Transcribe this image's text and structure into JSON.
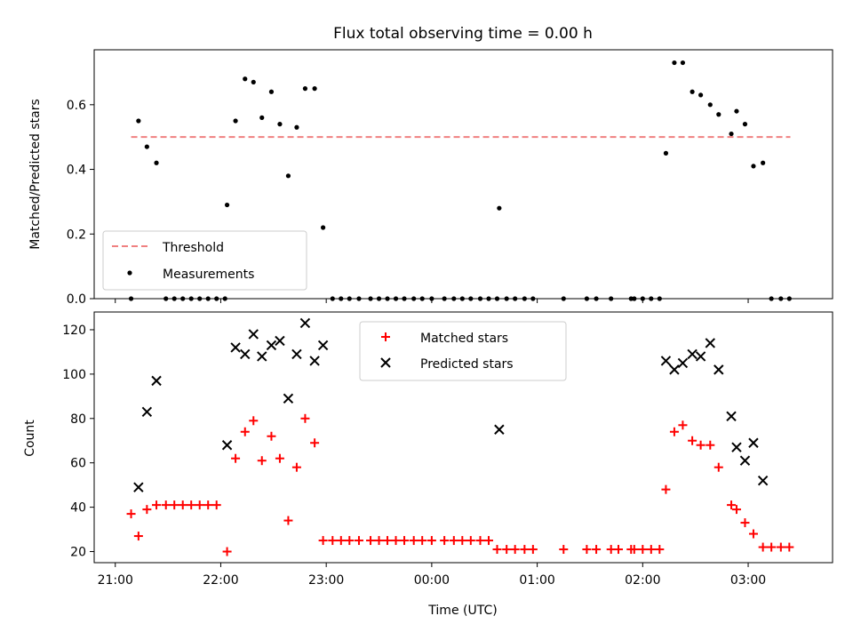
{
  "figure_title": "Flux total observing time = 0.00 h",
  "x_tick_labels": [
    "21:00",
    "22:00",
    "23:00",
    "00:00",
    "01:00",
    "02:00",
    "03:00"
  ],
  "colors": {
    "threshold": "#f08080",
    "measurements": "#000000",
    "matched": "#ff0000",
    "predicted": "#000000"
  },
  "chart_data": [
    {
      "type": "scatter",
      "ylabel": "Matched/Predicted stars",
      "ylim": [
        0,
        0.77
      ],
      "yticks": [
        0.0,
        0.2,
        0.4,
        0.6
      ],
      "ytick_labels": [
        "0.0",
        "0.2",
        "0.4",
        "0.6"
      ],
      "x_unit": "hours since 21:00 UTC",
      "xlim": [
        -0.2,
        6.8
      ],
      "legend": {
        "placement": "lower-left",
        "entries": [
          "Threshold",
          "Measurements"
        ]
      },
      "threshold": {
        "name": "Threshold",
        "y": 0.5,
        "x_range": [
          0.15,
          6.4
        ],
        "style": "dashed"
      },
      "series": [
        {
          "name": "Measurements",
          "marker": "dot",
          "points": [
            [
              0.15,
              0.0
            ],
            [
              0.22,
              0.55
            ],
            [
              0.3,
              0.47
            ],
            [
              0.39,
              0.42
            ],
            [
              0.48,
              0.0
            ],
            [
              0.56,
              0.0
            ],
            [
              0.64,
              0.0
            ],
            [
              0.72,
              0.0
            ],
            [
              0.8,
              0.0
            ],
            [
              0.88,
              0.0
            ],
            [
              0.96,
              0.0
            ],
            [
              1.04,
              0.0
            ],
            [
              1.06,
              0.29
            ],
            [
              1.14,
              0.55
            ],
            [
              1.23,
              0.68
            ],
            [
              1.31,
              0.67
            ],
            [
              1.39,
              0.56
            ],
            [
              1.48,
              0.64
            ],
            [
              1.56,
              0.54
            ],
            [
              1.64,
              0.38
            ],
            [
              1.72,
              0.53
            ],
            [
              1.8,
              0.65
            ],
            [
              1.89,
              0.65
            ],
            [
              1.97,
              0.22
            ],
            [
              2.06,
              0.0
            ],
            [
              2.14,
              0.0
            ],
            [
              2.22,
              0.0
            ],
            [
              2.31,
              0.0
            ],
            [
              2.42,
              0.0
            ],
            [
              2.5,
              0.0
            ],
            [
              2.58,
              0.0
            ],
            [
              2.66,
              0.0
            ],
            [
              2.74,
              0.0
            ],
            [
              2.83,
              0.0
            ],
            [
              2.91,
              0.0
            ],
            [
              3.0,
              0.0
            ],
            [
              3.12,
              0.0
            ],
            [
              3.21,
              0.0
            ],
            [
              3.29,
              0.0
            ],
            [
              3.37,
              0.0
            ],
            [
              3.46,
              0.0
            ],
            [
              3.54,
              0.0
            ],
            [
              3.62,
              0.0
            ],
            [
              3.64,
              0.28
            ],
            [
              3.71,
              0.0
            ],
            [
              3.79,
              0.0
            ],
            [
              3.88,
              0.0
            ],
            [
              3.96,
              0.0
            ],
            [
              4.25,
              0.0
            ],
            [
              4.47,
              0.0
            ],
            [
              4.56,
              0.0
            ],
            [
              4.7,
              0.0
            ],
            [
              4.89,
              0.0
            ],
            [
              4.92,
              0.0
            ],
            [
              5.0,
              0.0
            ],
            [
              5.08,
              0.0
            ],
            [
              5.16,
              0.0
            ],
            [
              5.22,
              0.45
            ],
            [
              5.3,
              0.73
            ],
            [
              5.38,
              0.73
            ],
            [
              5.47,
              0.64
            ],
            [
              5.55,
              0.63
            ],
            [
              5.64,
              0.6
            ],
            [
              5.72,
              0.57
            ],
            [
              5.84,
              0.51
            ],
            [
              5.89,
              0.58
            ],
            [
              5.97,
              0.54
            ],
            [
              6.05,
              0.41
            ],
            [
              6.14,
              0.42
            ],
            [
              6.22,
              0.0
            ],
            [
              6.31,
              0.0
            ],
            [
              6.39,
              0.0
            ]
          ]
        }
      ]
    },
    {
      "type": "scatter",
      "ylabel": "Count",
      "xlabel": "Time (UTC)",
      "ylim": [
        15,
        128
      ],
      "yticks": [
        20,
        40,
        60,
        80,
        100,
        120
      ],
      "ytick_labels": [
        "20",
        "40",
        "60",
        "80",
        "100",
        "120"
      ],
      "x_unit": "hours since 21:00 UTC",
      "xlim": [
        -0.2,
        6.8
      ],
      "legend": {
        "placement": "upper-center",
        "entries": [
          "Matched stars",
          "Predicted stars"
        ]
      },
      "series": [
        {
          "name": "Matched stars",
          "marker": "plus",
          "points": [
            [
              0.15,
              37
            ],
            [
              0.22,
              27
            ],
            [
              0.3,
              39
            ],
            [
              0.39,
              41
            ],
            [
              0.48,
              41
            ],
            [
              0.56,
              41
            ],
            [
              0.64,
              41
            ],
            [
              0.72,
              41
            ],
            [
              0.8,
              41
            ],
            [
              0.88,
              41
            ],
            [
              0.96,
              41
            ],
            [
              1.06,
              20
            ],
            [
              1.14,
              62
            ],
            [
              1.23,
              74
            ],
            [
              1.31,
              79
            ],
            [
              1.39,
              61
            ],
            [
              1.48,
              72
            ],
            [
              1.56,
              62
            ],
            [
              1.64,
              34
            ],
            [
              1.72,
              58
            ],
            [
              1.8,
              80
            ],
            [
              1.89,
              69
            ],
            [
              1.97,
              25
            ],
            [
              2.06,
              25
            ],
            [
              2.14,
              25
            ],
            [
              2.22,
              25
            ],
            [
              2.31,
              25
            ],
            [
              2.42,
              25
            ],
            [
              2.5,
              25
            ],
            [
              2.58,
              25
            ],
            [
              2.66,
              25
            ],
            [
              2.74,
              25
            ],
            [
              2.83,
              25
            ],
            [
              2.91,
              25
            ],
            [
              3.0,
              25
            ],
            [
              3.12,
              25
            ],
            [
              3.21,
              25
            ],
            [
              3.29,
              25
            ],
            [
              3.37,
              25
            ],
            [
              3.46,
              25
            ],
            [
              3.54,
              25
            ],
            [
              3.62,
              21
            ],
            [
              3.71,
              21
            ],
            [
              3.79,
              21
            ],
            [
              3.88,
              21
            ],
            [
              3.96,
              21
            ],
            [
              4.25,
              21
            ],
            [
              4.47,
              21
            ],
            [
              4.56,
              21
            ],
            [
              4.7,
              21
            ],
            [
              4.77,
              21
            ],
            [
              4.89,
              21
            ],
            [
              4.92,
              21
            ],
            [
              5.0,
              21
            ],
            [
              5.08,
              21
            ],
            [
              5.16,
              21
            ],
            [
              5.22,
              48
            ],
            [
              5.3,
              74
            ],
            [
              5.38,
              77
            ],
            [
              5.47,
              70
            ],
            [
              5.55,
              68
            ],
            [
              5.64,
              68
            ],
            [
              5.72,
              58
            ],
            [
              5.84,
              41
            ],
            [
              5.89,
              39
            ],
            [
              5.97,
              33
            ],
            [
              6.05,
              28
            ],
            [
              6.14,
              22
            ],
            [
              6.22,
              22
            ],
            [
              6.31,
              22
            ],
            [
              6.39,
              22
            ]
          ]
        },
        {
          "name": "Predicted stars",
          "marker": "x",
          "points": [
            [
              0.22,
              49
            ],
            [
              0.3,
              83
            ],
            [
              0.39,
              97
            ],
            [
              1.06,
              68
            ],
            [
              1.14,
              112
            ],
            [
              1.23,
              109
            ],
            [
              1.31,
              118
            ],
            [
              1.39,
              108
            ],
            [
              1.48,
              113
            ],
            [
              1.56,
              115
            ],
            [
              1.64,
              89
            ],
            [
              1.72,
              109
            ],
            [
              1.8,
              123
            ],
            [
              1.89,
              106
            ],
            [
              1.97,
              113
            ],
            [
              3.64,
              75
            ],
            [
              5.22,
              106
            ],
            [
              5.3,
              102
            ],
            [
              5.38,
              105
            ],
            [
              5.47,
              109
            ],
            [
              5.55,
              108
            ],
            [
              5.64,
              114
            ],
            [
              5.72,
              102
            ],
            [
              5.84,
              81
            ],
            [
              5.89,
              67
            ],
            [
              5.97,
              61
            ],
            [
              6.05,
              69
            ],
            [
              6.14,
              52
            ]
          ]
        }
      ]
    }
  ]
}
